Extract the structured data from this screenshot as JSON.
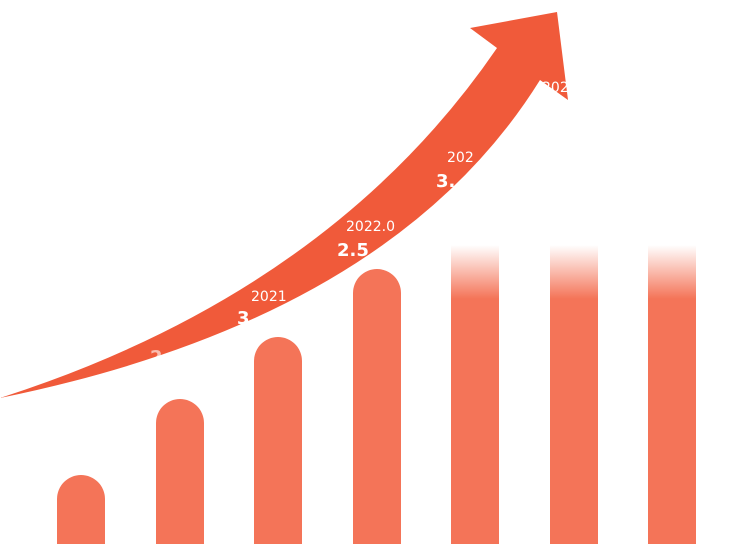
{
  "labels": [
    "2",
    "3",
    "2021",
    "2022.0",
    "2.5",
    "202",
    "3.",
    "202"
  ]
}
